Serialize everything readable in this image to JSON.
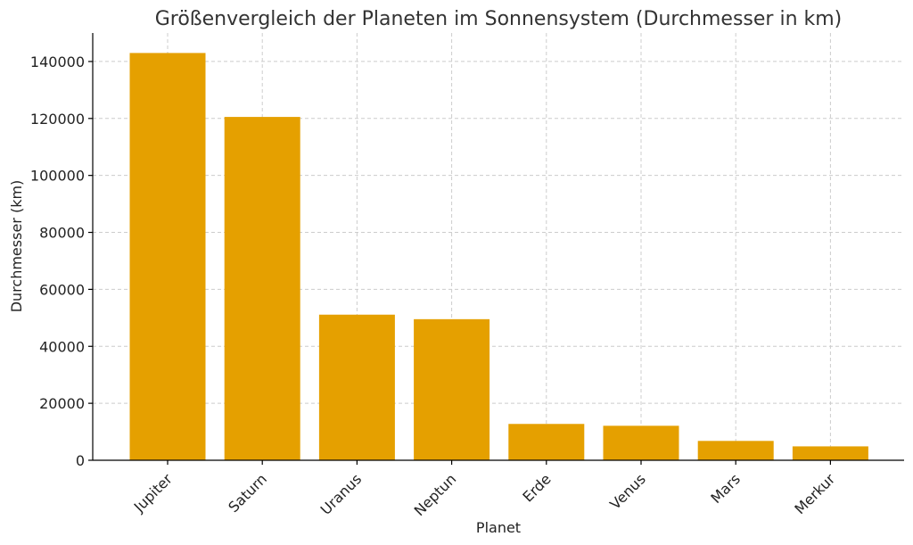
{
  "chart_data": {
    "type": "bar",
    "title": "Größenvergleich der Planeten im Sonnensystem (Durchmesser in km)",
    "xlabel": "Planet",
    "ylabel": "Durchmesser (km)",
    "categories": [
      "Jupiter",
      "Saturn",
      "Uranus",
      "Neptun",
      "Erde",
      "Venus",
      "Mars",
      "Merkur"
    ],
    "values": [
      142984,
      120536,
      51118,
      49528,
      12756,
      12104,
      6792,
      4879
    ],
    "ylim": [
      0,
      150000
    ],
    "yticks": [
      0,
      20000,
      40000,
      60000,
      80000,
      100000,
      120000,
      140000
    ],
    "ytick_labels": [
      "0",
      "20000",
      "40000",
      "60000",
      "80000",
      "100000",
      "120000",
      "140000"
    ],
    "bar_color": "#e5a000",
    "grid": true
  }
}
